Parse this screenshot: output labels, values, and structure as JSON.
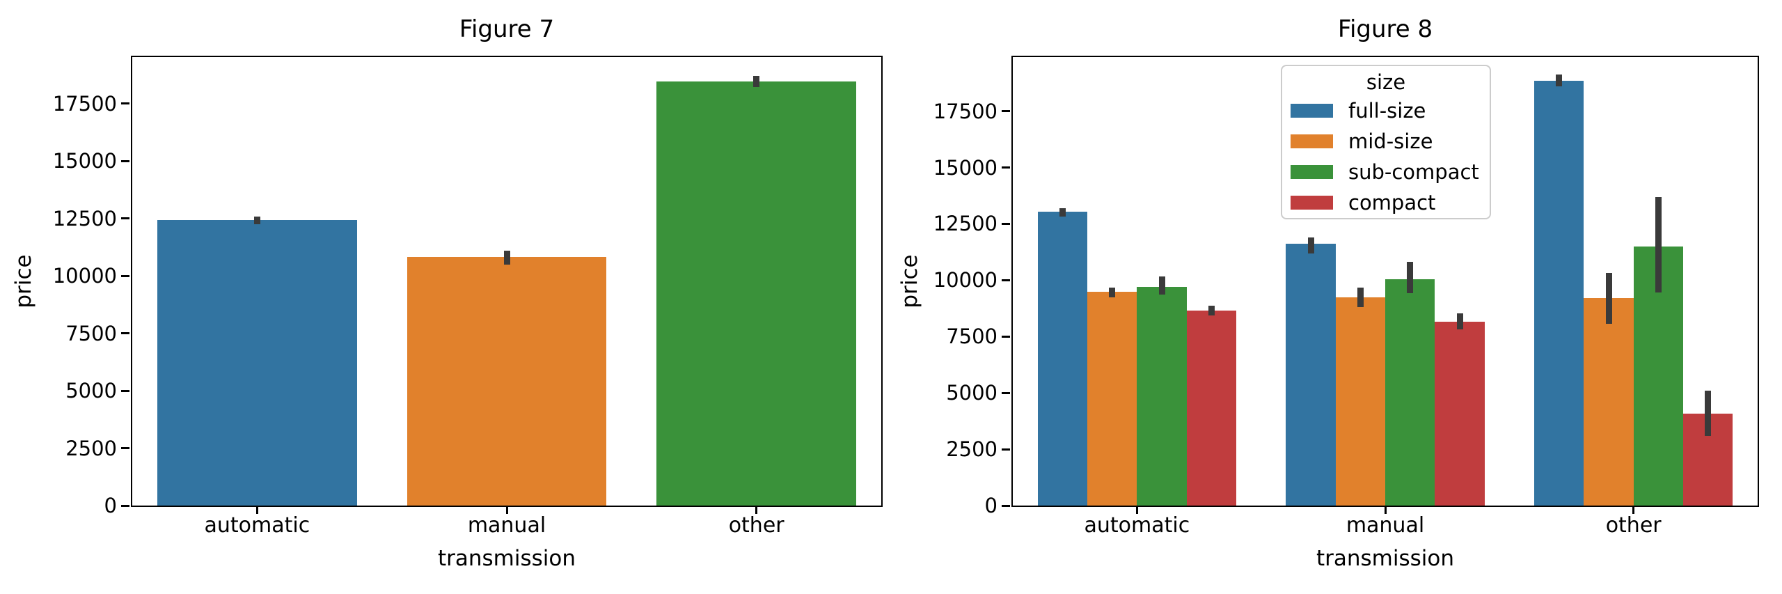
{
  "error_bar_color": "#3a3a3a",
  "spine_color": "#000000",
  "background_color": "#ffffff",
  "chart_data": [
    {
      "type": "bar",
      "title": "Figure 7",
      "xlabel": "transmission",
      "ylabel": "price",
      "categories": [
        "automatic",
        "manual",
        "other"
      ],
      "values": [
        12420,
        10810,
        18460
      ],
      "errors": [
        [
          12260,
          12590
        ],
        [
          10480,
          11080
        ],
        [
          18220,
          18700
        ]
      ],
      "bar_colors": [
        "#3274a1",
        "#e1812c",
        "#3a923a"
      ],
      "yticks": [
        0,
        2500,
        5000,
        7500,
        10000,
        12500,
        15000,
        17500
      ],
      "ylim": [
        0,
        19520
      ],
      "grid": false,
      "legend": null
    },
    {
      "type": "bar",
      "title": "Figure 8",
      "xlabel": "transmission",
      "ylabel": "price",
      "categories": [
        "automatic",
        "manual",
        "other"
      ],
      "series": [
        {
          "name": "full-size",
          "color": "#3274a1",
          "values": [
            13040,
            11630,
            18850
          ],
          "errors": [
            [
              12830,
              13190
            ],
            [
              11200,
              11910
            ],
            [
              18600,
              19120
            ]
          ]
        },
        {
          "name": "mid-size",
          "color": "#e1812c",
          "values": [
            9480,
            9240,
            9210
          ],
          "errors": [
            [
              9240,
              9670
            ],
            [
              8810,
              9670
            ],
            [
              8070,
              10320
            ]
          ]
        },
        {
          "name": "sub-compact",
          "color": "#3a923a",
          "values": [
            9700,
            10040,
            11500
          ],
          "errors": [
            [
              9360,
              10160
            ],
            [
              9420,
              10810
            ],
            [
              9460,
              13690
            ]
          ]
        },
        {
          "name": "compact",
          "color": "#c03d3e",
          "values": [
            8660,
            8170,
            4080
          ],
          "errors": [
            [
              8440,
              8870
            ],
            [
              7830,
              8530
            ],
            [
              3100,
              5100
            ]
          ]
        }
      ],
      "yticks": [
        0,
        2500,
        5000,
        7500,
        10000,
        12500,
        15000,
        17500
      ],
      "ylim": [
        0,
        19900
      ],
      "grid": false,
      "legend": {
        "title": "size",
        "position": "upper right"
      }
    }
  ]
}
